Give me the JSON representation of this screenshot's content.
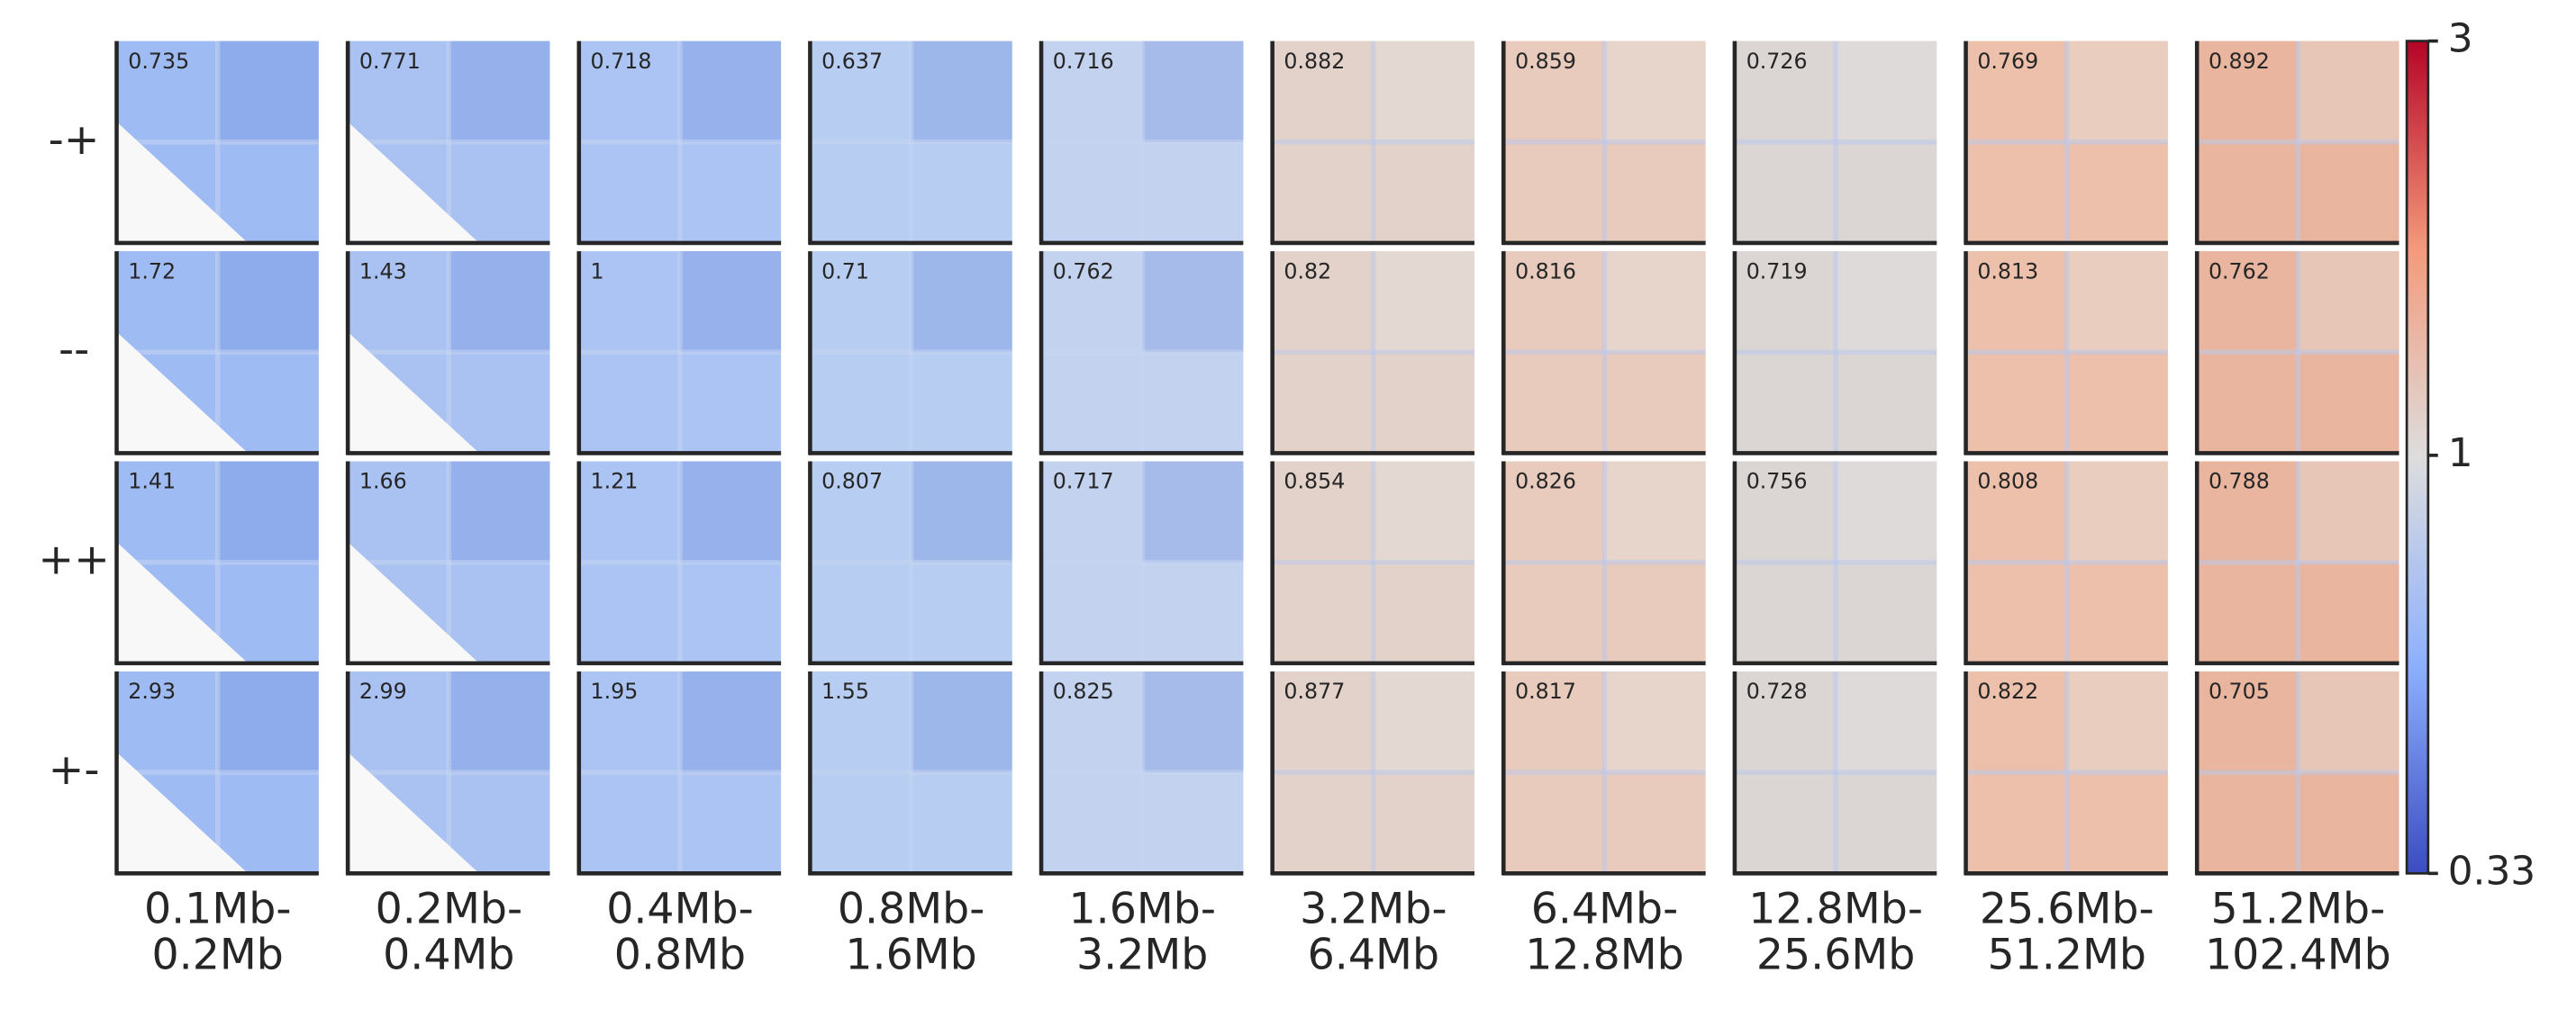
{
  "chart_data": {
    "type": "heatmap-grid",
    "rows": [
      "-+",
      "--",
      "++",
      "+-"
    ],
    "columns": [
      [
        "0.1Mb-",
        "0.2Mb"
      ],
      [
        "0.2Mb-",
        "0.4Mb"
      ],
      [
        "0.4Mb-",
        "0.8Mb"
      ],
      [
        "0.8Mb-",
        "1.6Mb"
      ],
      [
        "1.6Mb-",
        "3.2Mb"
      ],
      [
        "3.2Mb-",
        "6.4Mb"
      ],
      [
        "6.4Mb-",
        "12.8Mb"
      ],
      [
        "12.8Mb-",
        "25.6Mb"
      ],
      [
        "25.6Mb-",
        "51.2Mb"
      ],
      [
        "51.2Mb-",
        "102.4Mb"
      ]
    ],
    "values": [
      [
        0.735,
        0.771,
        0.718,
        0.637,
        0.716,
        0.882,
        0.859,
        0.726,
        0.769,
        0.892
      ],
      [
        1.72,
        1.43,
        1,
        0.71,
        0.762,
        0.82,
        0.816,
        0.719,
        0.813,
        0.762
      ],
      [
        1.41,
        1.66,
        1.21,
        0.807,
        0.717,
        0.854,
        0.826,
        0.756,
        0.808,
        0.788
      ],
      [
        2.93,
        2.99,
        1.95,
        1.55,
        0.825,
        0.877,
        0.817,
        0.728,
        0.822,
        0.705
      ]
    ],
    "colorbar": {
      "ylim": [
        0.33,
        3
      ],
      "yticks": [
        3,
        1,
        0.33
      ],
      "log": true
    }
  }
}
